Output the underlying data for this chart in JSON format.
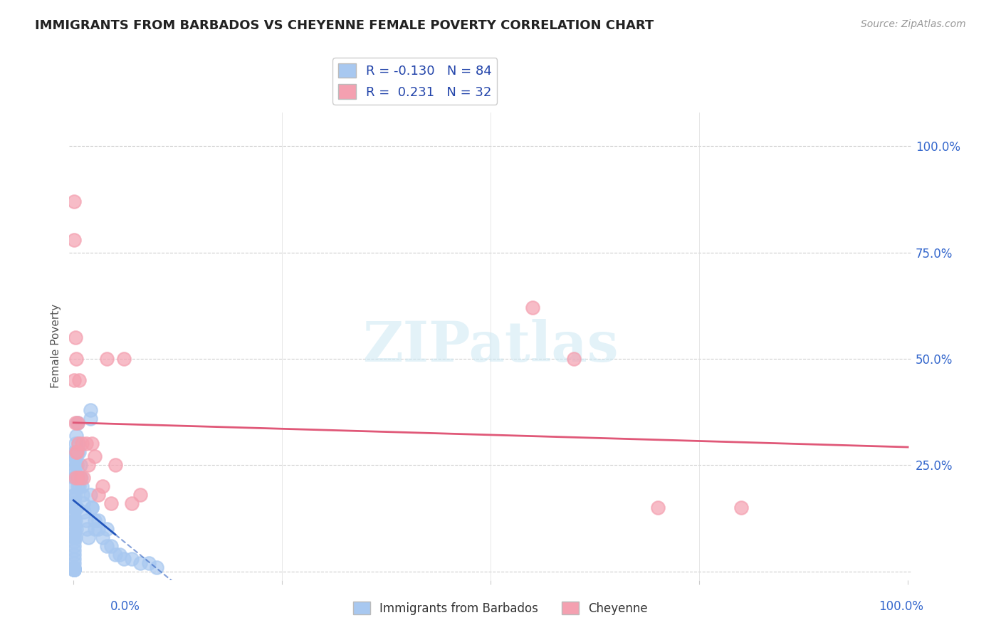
{
  "title": "IMMIGRANTS FROM BARBADOS VS CHEYENNE FEMALE POVERTY CORRELATION CHART",
  "source": "Source: ZipAtlas.com",
  "ylabel": "Female Poverty",
  "ytick_positions": [
    0.0,
    0.25,
    0.5,
    0.75,
    1.0
  ],
  "ytick_labels_right": [
    "",
    "25.0%",
    "50.0%",
    "75.0%",
    "100.0%"
  ],
  "legend_r1": "R = -0.130",
  "legend_n1": "N = 84",
  "legend_r2": "R =  0.231",
  "legend_n2": "N = 32",
  "blue_color": "#a8c8f0",
  "pink_color": "#f4a0b0",
  "blue_line_color": "#2255bb",
  "pink_line_color": "#e05878",
  "blue_scatter_x": [
    0.001,
    0.001,
    0.001,
    0.001,
    0.001,
    0.001,
    0.001,
    0.001,
    0.001,
    0.001,
    0.001,
    0.001,
    0.001,
    0.001,
    0.001,
    0.001,
    0.001,
    0.001,
    0.001,
    0.001,
    0.001,
    0.001,
    0.001,
    0.001,
    0.001,
    0.001,
    0.001,
    0.001,
    0.001,
    0.001,
    0.001,
    0.001,
    0.002,
    0.002,
    0.002,
    0.002,
    0.002,
    0.002,
    0.002,
    0.002,
    0.003,
    0.003,
    0.003,
    0.003,
    0.003,
    0.004,
    0.004,
    0.004,
    0.005,
    0.005,
    0.005,
    0.006,
    0.006,
    0.007,
    0.007,
    0.008,
    0.009,
    0.01,
    0.011,
    0.012,
    0.013,
    0.015,
    0.016,
    0.018,
    0.02,
    0.022,
    0.025,
    0.03,
    0.03,
    0.035,
    0.04,
    0.04,
    0.045,
    0.05,
    0.055,
    0.06,
    0.07,
    0.08,
    0.09,
    0.1,
    0.02,
    0.02,
    0.022,
    0.025
  ],
  "blue_scatter_y": [
    0.28,
    0.27,
    0.26,
    0.24,
    0.23,
    0.22,
    0.2,
    0.18,
    0.17,
    0.16,
    0.15,
    0.14,
    0.13,
    0.12,
    0.11,
    0.1,
    0.09,
    0.08,
    0.07,
    0.06,
    0.05,
    0.04,
    0.03,
    0.02,
    0.01,
    0.005,
    0.005,
    0.005,
    0.005,
    0.005,
    0.005,
    0.005,
    0.3,
    0.28,
    0.25,
    0.22,
    0.18,
    0.15,
    0.12,
    0.08,
    0.32,
    0.27,
    0.22,
    0.15,
    0.1,
    0.35,
    0.25,
    0.15,
    0.35,
    0.28,
    0.2,
    0.3,
    0.22,
    0.28,
    0.2,
    0.25,
    0.22,
    0.2,
    0.18,
    0.16,
    0.14,
    0.12,
    0.1,
    0.08,
    0.18,
    0.15,
    0.12,
    0.1,
    0.12,
    0.08,
    0.06,
    0.1,
    0.06,
    0.04,
    0.04,
    0.03,
    0.03,
    0.02,
    0.02,
    0.01,
    0.36,
    0.38,
    0.15,
    0.1
  ],
  "pink_scatter_x": [
    0.001,
    0.001,
    0.001,
    0.002,
    0.002,
    0.002,
    0.003,
    0.003,
    0.004,
    0.005,
    0.005,
    0.006,
    0.007,
    0.008,
    0.01,
    0.012,
    0.015,
    0.018,
    0.022,
    0.025,
    0.03,
    0.035,
    0.04,
    0.045,
    0.05,
    0.06,
    0.07,
    0.08,
    0.55,
    0.6,
    0.7,
    0.8
  ],
  "pink_scatter_y": [
    0.87,
    0.78,
    0.45,
    0.55,
    0.35,
    0.22,
    0.5,
    0.28,
    0.28,
    0.35,
    0.22,
    0.3,
    0.45,
    0.22,
    0.3,
    0.22,
    0.3,
    0.25,
    0.3,
    0.27,
    0.18,
    0.2,
    0.5,
    0.16,
    0.25,
    0.5,
    0.16,
    0.18,
    0.62,
    0.5,
    0.15,
    0.15
  ]
}
